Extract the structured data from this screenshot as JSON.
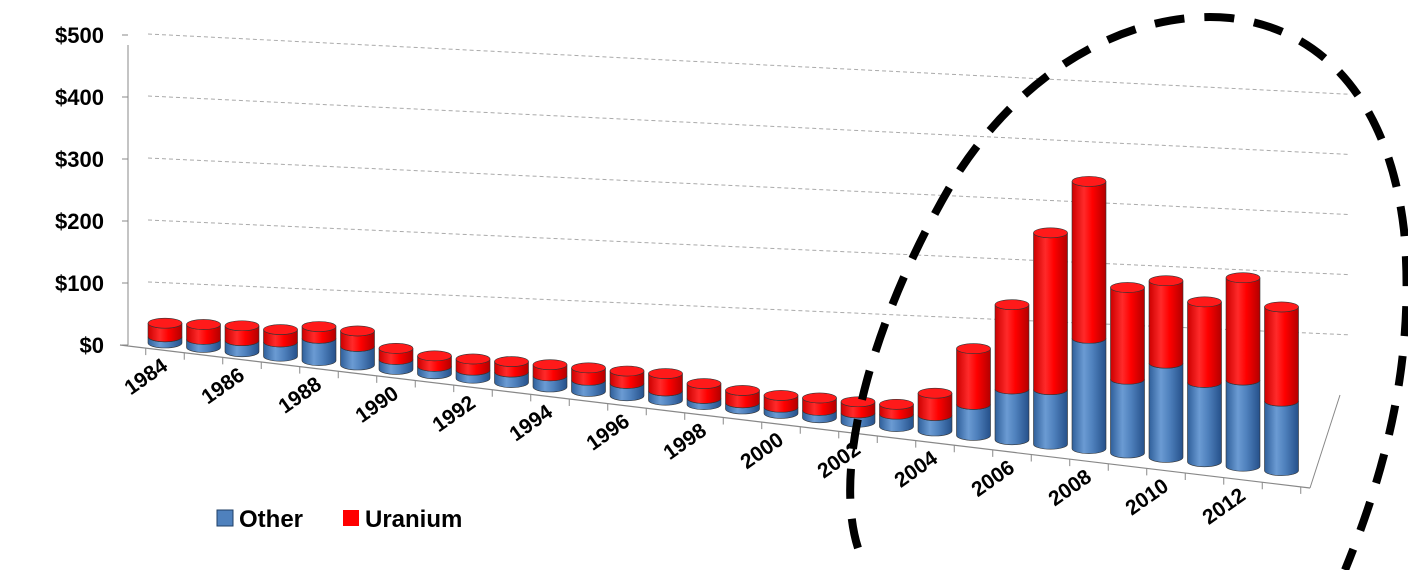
{
  "chart_data": {
    "type": "bar",
    "stacked": true,
    "three_d": true,
    "categories": [
      1984,
      1985,
      1986,
      1987,
      1988,
      1989,
      1990,
      1991,
      1992,
      1993,
      1994,
      1995,
      1996,
      1997,
      1998,
      1999,
      2000,
      2001,
      2002,
      2003,
      2004,
      2005,
      2006,
      2007,
      2008,
      2009,
      2010,
      2011,
      2012,
      2013
    ],
    "x_tick_labels": [
      "1984",
      "1986",
      "1988",
      "1990",
      "1992",
      "1994",
      "1996",
      "1998",
      "2000",
      "2002",
      "2004",
      "2006",
      "2008",
      "2010",
      "2012"
    ],
    "series": [
      {
        "name": "Other",
        "color": "#4F81BD",
        "values": [
          10,
          13,
          18,
          23,
          36,
          30,
          16,
          12,
          13,
          17,
          18,
          18,
          20,
          15,
          10,
          10,
          10,
          12,
          15,
          20,
          25,
          50,
          82,
          88,
          178,
          119,
          152,
          128,
          139,
          112
        ]
      },
      {
        "name": "Uranium",
        "color": "#FF0000",
        "values": [
          22,
          24,
          24,
          20,
          19,
          25,
          18,
          17,
          18,
          17,
          18,
          20,
          20,
          28,
          24,
          20,
          19,
          20,
          18,
          16,
          36,
          90,
          136,
          253,
          253,
          148,
          133,
          130,
          165,
          152
        ]
      }
    ],
    "yticks": [
      "$0",
      "$100",
      "$200",
      "$300",
      "$400",
      "$500"
    ],
    "ylim": [
      0,
      500
    ],
    "grid": true,
    "legend_position": "bottom-left",
    "annotation": "dashed-ellipse-highlight-2005-2013"
  }
}
